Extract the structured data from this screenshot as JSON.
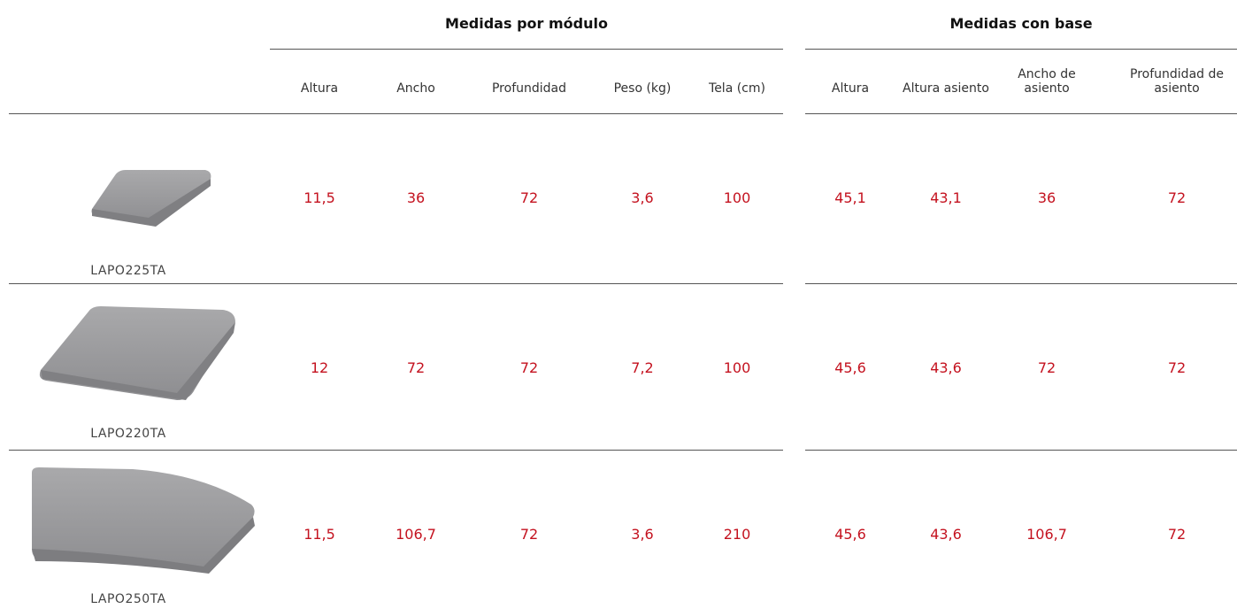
{
  "table": {
    "groups": [
      "Medidas por módulo",
      "Medidas con base"
    ],
    "columns": [
      "Altura",
      "Ancho",
      "Profundidad",
      "Peso (kg)",
      "Tela (cm)",
      "Altura",
      "Altura asiento",
      "Ancho de asiento",
      "Profundidad de asiento"
    ],
    "rows": [
      {
        "code": "LAPO225TA",
        "values": [
          "11,5",
          "36",
          "72",
          "3,6",
          "100",
          "45,1",
          "43,1",
          "36",
          "72"
        ]
      },
      {
        "code": "LAPO220TA",
        "values": [
          "12",
          "72",
          "72",
          "7,2",
          "100",
          "45,6",
          "43,6",
          "72",
          "72"
        ]
      },
      {
        "code": "LAPO250TA",
        "values": [
          "11,5",
          "106,7",
          "72",
          "3,6",
          "210",
          "45,6",
          "43,6",
          "106,7",
          "72"
        ]
      }
    ]
  }
}
